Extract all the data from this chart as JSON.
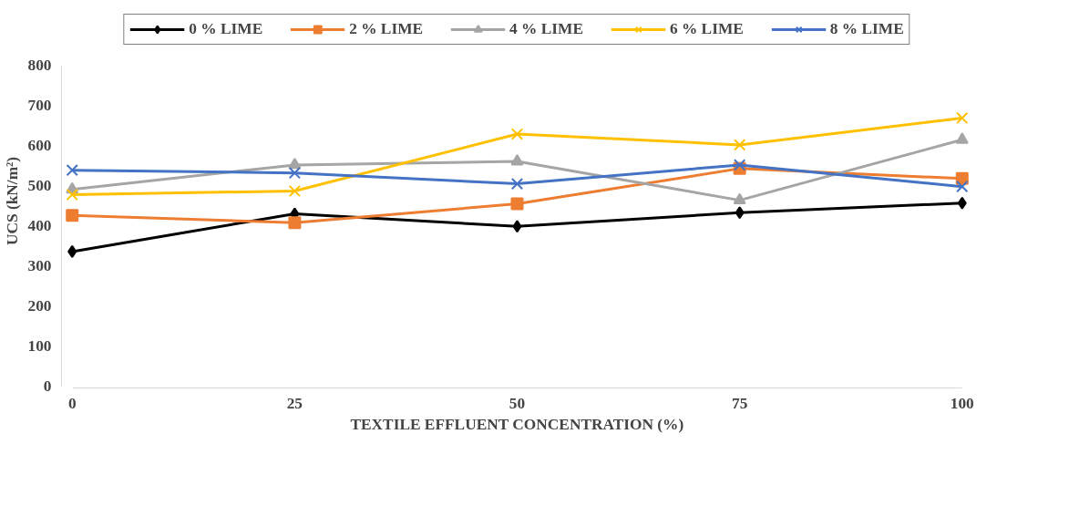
{
  "chart_data": {
    "type": "line",
    "xlabel": "TEXTILE EFFLUENT CONCENTRATION (%)",
    "ylabel": "UCS (kN/m²)",
    "x": [
      0,
      25,
      50,
      75,
      100
    ],
    "xlim": [
      0,
      100
    ],
    "xticks": [
      0,
      25,
      50,
      75,
      100
    ],
    "ylim": [
      0,
      800
    ],
    "yticks": [
      0,
      100,
      200,
      300,
      400,
      500,
      600,
      700,
      800
    ],
    "grid": false,
    "legend": "top",
    "line_style": "solid",
    "series": [
      {
        "name": "0 % LIME",
        "color": "#000000",
        "marker": "diamond",
        "values": [
          336,
          430,
          399,
          433,
          457
        ]
      },
      {
        "name": "2 % LIME",
        "color": "#ed7d31",
        "marker": "square",
        "values": [
          426,
          408,
          455,
          543,
          518
        ]
      },
      {
        "name": "4 % LIME",
        "color": "#a5a5a5",
        "marker": "triangle",
        "values": [
          491,
          552,
          561,
          464,
          615
        ]
      },
      {
        "name": "6 % LIME",
        "color": "#ffc000",
        "marker": "cross",
        "values": [
          478,
          487,
          629,
          602,
          669
        ]
      },
      {
        "name": "8 % LIME",
        "color": "#4472c4",
        "marker": "cross",
        "values": [
          539,
          532,
          505,
          552,
          498
        ]
      }
    ]
  }
}
